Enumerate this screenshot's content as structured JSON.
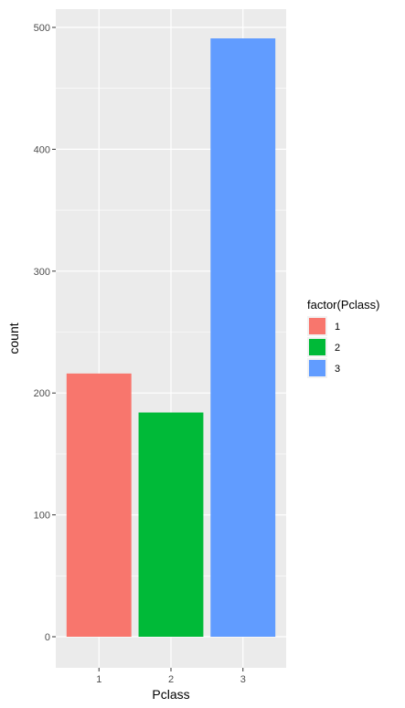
{
  "chart_data": {
    "type": "bar",
    "categories": [
      "1",
      "2",
      "3"
    ],
    "values": [
      216,
      184,
      491
    ],
    "xlabel": "Pclass",
    "ylabel": "count",
    "ylim": [
      0,
      515
    ],
    "yticks": [
      0,
      100,
      200,
      300,
      400,
      500
    ],
    "grid": true,
    "legend": {
      "title": "factor(Pclass)",
      "position": "right",
      "entries": [
        "1",
        "2",
        "3"
      ]
    },
    "colors": [
      "#F8766D",
      "#00BA38",
      "#619CFF"
    ],
    "panel_background": "#EBEBEB",
    "gridline_color": "#FFFFFF"
  }
}
